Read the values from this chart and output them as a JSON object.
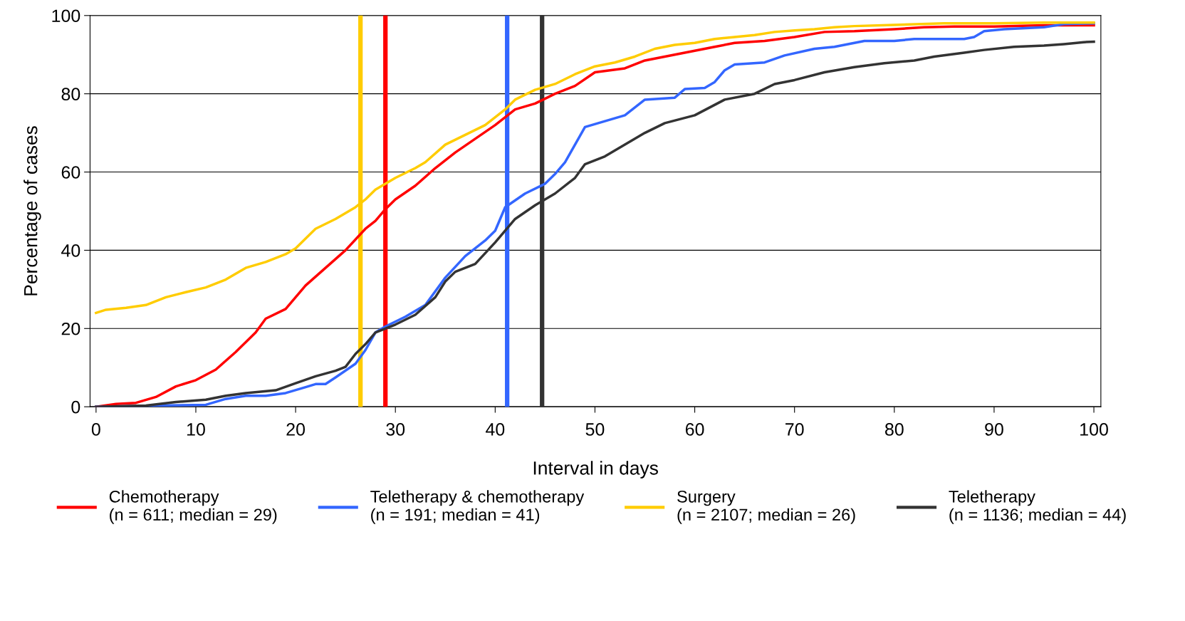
{
  "chart_data": {
    "type": "line",
    "xlabel": "Interval in days",
    "ylabel": "Percentage of cases",
    "xlim": [
      -0.6,
      100.7
    ],
    "ylim": [
      0,
      100
    ],
    "xticks": [
      0,
      10,
      20,
      30,
      40,
      50,
      60,
      70,
      80,
      90,
      100
    ],
    "yticks": [
      0,
      20,
      40,
      60,
      80,
      100
    ],
    "grid": "y",
    "legend": "bottom",
    "marker": "none",
    "line_style": "solid",
    "series": [
      {
        "name": "Chemotherapy\n(n = 611; median = 29)",
        "color": "#ff0000",
        "x": [
          0,
          2,
          4,
          6,
          8,
          10,
          12,
          14,
          16,
          17,
          19,
          21,
          23,
          25,
          27,
          28,
          29,
          30,
          32,
          34,
          36,
          38,
          40,
          42,
          44,
          46,
          48,
          50,
          53,
          55,
          58,
          60,
          62,
          64,
          67,
          70,
          73,
          76,
          80,
          83,
          86,
          90,
          95,
          100
        ],
        "values": [
          0,
          0.7,
          1,
          2.5,
          5.2,
          6.8,
          9.5,
          14,
          19,
          22.5,
          25,
          31,
          35.5,
          40,
          45.5,
          47.5,
          50.5,
          53,
          56.5,
          61,
          65,
          68.5,
          72,
          76,
          77.5,
          80,
          82,
          85.5,
          86.5,
          88.5,
          90,
          91,
          92,
          93,
          93.5,
          94.5,
          95.8,
          96,
          96.5,
          97,
          97.2,
          97.2,
          97.5,
          97.5
        ]
      },
      {
        "name": "Teletherapy & chemotherapy\n(n = 191; median = 41)",
        "color": "#3366ff",
        "x": [
          0,
          6,
          11,
          13,
          15,
          17,
          19,
          21,
          22,
          23,
          24,
          26,
          27,
          28,
          29,
          31,
          33,
          35,
          37,
          39,
          40,
          41,
          43,
          45,
          46,
          47,
          49,
          51,
          53,
          55,
          58,
          59,
          61,
          62,
          63,
          64,
          67,
          69,
          72,
          74,
          77,
          80,
          82,
          87,
          88,
          89,
          91,
          95,
          97,
          100
        ],
        "values": [
          0,
          0.3,
          0.5,
          2,
          2.8,
          2.8,
          3.5,
          5,
          5.8,
          5.8,
          7.5,
          11,
          14.5,
          19,
          20.5,
          23,
          26,
          33,
          38.5,
          42.5,
          45,
          51,
          54.5,
          57,
          59.5,
          62.5,
          71.5,
          73,
          74.5,
          78.5,
          79,
          81.2,
          81.5,
          83,
          86,
          87.5,
          88,
          89.8,
          91.5,
          92,
          93.5,
          93.5,
          94,
          94,
          94.5,
          96,
          96.5,
          97,
          97.8,
          98
        ]
      },
      {
        "name": "Surgery\n(n = 2107; median = 26)",
        "color": "#ffcc00",
        "x": [
          0,
          1,
          3,
          5,
          7,
          9,
          11,
          13,
          15,
          17,
          19,
          20,
          21,
          22,
          24,
          26,
          27,
          28,
          30,
          32,
          33,
          35,
          37,
          39,
          41,
          42,
          44,
          46,
          48,
          50,
          52,
          54,
          56,
          58,
          60,
          62,
          64,
          66,
          68,
          70,
          72,
          74,
          76,
          80,
          85,
          90,
          95,
          100
        ],
        "values": [
          24,
          24.8,
          25.3,
          26,
          28,
          29.3,
          30.5,
          32.5,
          35.5,
          37,
          39,
          40.5,
          43,
          45.5,
          48,
          51,
          53,
          55.5,
          58.5,
          61,
          62.5,
          67,
          69.5,
          72,
          76,
          78.5,
          81,
          82.5,
          85,
          87,
          88,
          89.5,
          91.5,
          92.5,
          93,
          94,
          94.5,
          95,
          95.8,
          96.2,
          96.5,
          97,
          97.3,
          97.6,
          98,
          98,
          98.2,
          98.2
        ]
      },
      {
        "name": "Teletherapy\n(n = 1136; median = 44)",
        "color": "#333333",
        "x": [
          0,
          5,
          8,
          11,
          13,
          15,
          18,
          20,
          22,
          24,
          25,
          26,
          27,
          28,
          30,
          32,
          34,
          35,
          36,
          38,
          40,
          42,
          44,
          46,
          48,
          49,
          51,
          53,
          55,
          57,
          60,
          63,
          66,
          68,
          70,
          73,
          76,
          79,
          82,
          84,
          87,
          89,
          92,
          95,
          97,
          99,
          100
        ],
        "values": [
          0,
          0.3,
          1.2,
          1.8,
          2.8,
          3.5,
          4.2,
          6,
          7.8,
          9.2,
          10.2,
          13.5,
          16,
          19,
          21,
          23.5,
          28,
          32,
          34.5,
          36.5,
          42,
          48,
          51.5,
          54.5,
          58.5,
          62,
          64,
          67,
          70,
          72.5,
          74.5,
          78.5,
          80,
          82.5,
          83.5,
          85.5,
          86.8,
          87.8,
          88.5,
          89.5,
          90.5,
          91.2,
          92,
          92.3,
          92.7,
          93.2,
          93.3
        ]
      }
    ],
    "ref_lines": [
      {
        "axis": "x",
        "value": 26.5,
        "color": "#ffcc00"
      },
      {
        "axis": "x",
        "value": 29,
        "color": "#ff0000"
      },
      {
        "axis": "x",
        "value": 41.2,
        "color": "#3366ff"
      },
      {
        "axis": "x",
        "value": 44.7,
        "color": "#333333"
      }
    ]
  }
}
